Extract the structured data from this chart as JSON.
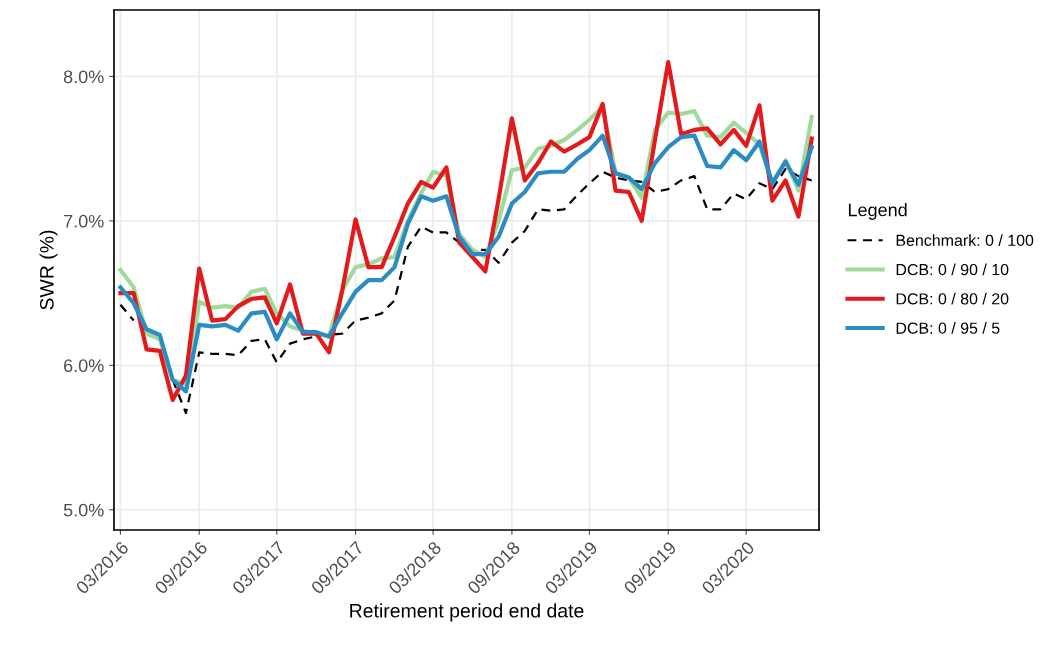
{
  "chart_data": {
    "type": "line",
    "xlabel": "Retirement period end date",
    "ylabel": "SWR (%)",
    "legend_title": "Legend",
    "legend": "right",
    "grid": true,
    "x": [
      "2016-03",
      "2016-04",
      "2016-05",
      "2016-06",
      "2016-07",
      "2016-08",
      "2016-09",
      "2016-10",
      "2016-11",
      "2016-12",
      "2017-01",
      "2017-02",
      "2017-03",
      "2017-04",
      "2017-05",
      "2017-06",
      "2017-07",
      "2017-08",
      "2017-09",
      "2017-10",
      "2017-11",
      "2017-12",
      "2018-01",
      "2018-02",
      "2018-03",
      "2018-04",
      "2018-05",
      "2018-06",
      "2018-07",
      "2018-08",
      "2018-09",
      "2018-10",
      "2018-11",
      "2018-12",
      "2019-01",
      "2019-02",
      "2019-03",
      "2019-04",
      "2019-05",
      "2019-06",
      "2019-07",
      "2019-08",
      "2019-09",
      "2019-10",
      "2019-11",
      "2019-12",
      "2020-01",
      "2020-02",
      "2020-03",
      "2020-04",
      "2020-05",
      "2020-06",
      "2020-07",
      "2020-08"
    ],
    "xlim": [
      "2016-02-15",
      "2020-08-18"
    ],
    "xticks": [
      {
        "value": "2016-03",
        "label": "03/2016"
      },
      {
        "value": "2016-09",
        "label": "09/2016"
      },
      {
        "value": "2017-03",
        "label": "03/2017"
      },
      {
        "value": "2017-09",
        "label": "09/2017"
      },
      {
        "value": "2018-03",
        "label": "03/2018"
      },
      {
        "value": "2018-09",
        "label": "09/2018"
      },
      {
        "value": "2019-03",
        "label": "03/2019"
      },
      {
        "value": "2019-09",
        "label": "09/2019"
      },
      {
        "value": "2020-03",
        "label": "03/2020"
      }
    ],
    "ylim": [
      4.86,
      8.46
    ],
    "yticks": [
      {
        "value": 5.0,
        "label": "5.0%"
      },
      {
        "value": 6.0,
        "label": "6.0%"
      },
      {
        "value": 7.0,
        "label": "7.0%"
      },
      {
        "value": 8.0,
        "label": "8.0%"
      }
    ],
    "series": [
      {
        "name": "Benchmark: 0 / 100",
        "color": "#000000",
        "line_style": "dashed",
        "values": [
          6.42,
          6.31,
          null,
          null,
          5.9,
          5.67,
          6.09,
          6.08,
          6.08,
          6.07,
          6.17,
          6.18,
          6.02,
          6.15,
          6.18,
          6.2,
          6.21,
          6.22,
          6.31,
          6.33,
          6.36,
          6.45,
          6.82,
          6.96,
          6.92,
          6.92,
          6.85,
          6.8,
          6.8,
          6.71,
          6.85,
          6.93,
          7.08,
          7.07,
          7.08,
          7.18,
          7.26,
          7.34,
          7.3,
          7.28,
          7.27,
          7.2,
          7.22,
          7.28,
          7.31,
          7.08,
          7.08,
          7.19,
          7.15,
          7.26,
          7.22,
          7.36,
          7.31,
          7.28
        ]
      },
      {
        "name": "DCB: 0 / 90 / 10",
        "color": "#a1d99b",
        "line_style": "solid",
        "values": [
          6.66,
          6.54,
          6.22,
          6.18,
          5.9,
          5.87,
          6.44,
          6.4,
          6.41,
          6.4,
          6.51,
          6.53,
          6.36,
          6.27,
          6.24,
          6.22,
          6.2,
          6.52,
          6.68,
          6.7,
          6.74,
          6.75,
          7.0,
          7.19,
          7.34,
          7.31,
          6.91,
          6.8,
          6.75,
          7.0,
          7.35,
          7.37,
          7.5,
          7.52,
          7.56,
          7.63,
          7.7,
          7.79,
          7.33,
          7.3,
          7.16,
          7.63,
          7.75,
          7.74,
          7.76,
          7.59,
          7.58,
          7.68,
          7.61,
          7.53,
          7.26,
          7.42,
          7.21,
          7.72
        ]
      },
      {
        "name": "DCB: 0 / 80 / 20",
        "color": "#e31a1c",
        "line_style": "solid",
        "values": [
          6.5,
          6.5,
          6.11,
          6.1,
          5.76,
          5.93,
          6.67,
          6.31,
          6.32,
          6.41,
          6.46,
          6.47,
          6.29,
          6.56,
          6.22,
          6.22,
          6.09,
          6.52,
          7.01,
          6.68,
          6.68,
          6.89,
          7.12,
          7.27,
          7.23,
          7.37,
          6.85,
          6.75,
          6.65,
          7.15,
          7.71,
          7.28,
          7.4,
          7.55,
          7.48,
          7.53,
          7.58,
          7.81,
          7.21,
          7.2,
          7.0,
          7.56,
          8.1,
          7.6,
          7.63,
          7.64,
          7.53,
          7.63,
          7.52,
          7.8,
          7.14,
          7.28,
          7.03,
          7.57
        ]
      },
      {
        "name": "DCB: 0 / 95 / 5",
        "color": "#2b8cc4",
        "line_style": "solid",
        "values": [
          6.54,
          6.43,
          6.25,
          6.21,
          5.9,
          5.82,
          6.28,
          6.27,
          6.28,
          6.24,
          6.36,
          6.37,
          6.18,
          6.36,
          6.23,
          6.23,
          6.2,
          6.36,
          6.51,
          6.59,
          6.59,
          6.68,
          6.98,
          7.17,
          7.14,
          7.17,
          6.89,
          6.77,
          6.77,
          6.89,
          7.12,
          7.2,
          7.33,
          7.34,
          7.34,
          7.43,
          7.49,
          7.59,
          7.33,
          7.3,
          7.22,
          7.4,
          7.51,
          7.58,
          7.59,
          7.38,
          7.37,
          7.49,
          7.42,
          7.55,
          7.26,
          7.41,
          7.25,
          7.51
        ]
      }
    ]
  }
}
